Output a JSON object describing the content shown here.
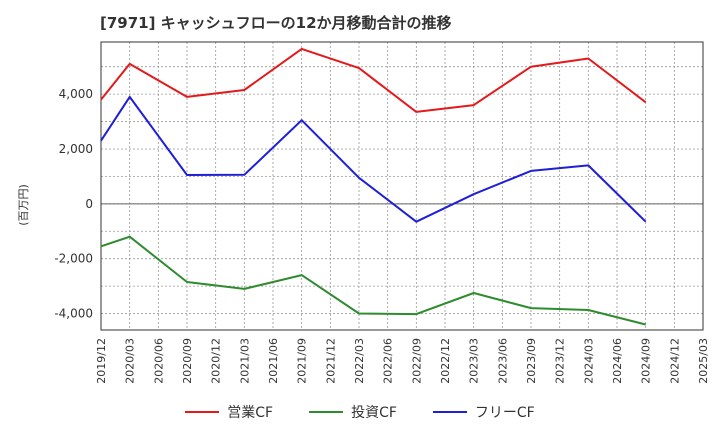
{
  "chart_data": {
    "type": "line",
    "title": "[7971]  キャッシュフローの12か月移動合計の推移",
    "ylabel": "(百万円)",
    "xlabel": "",
    "ylim": [
      -4600,
      5900
    ],
    "yticks": [
      -4000,
      -2000,
      0,
      2000,
      4000
    ],
    "ytick_labels": [
      "-4,000",
      "-2,000",
      "0",
      "2,000",
      "4,000"
    ],
    "categories": [
      "2019/12",
      "2020/03",
      "2020/06",
      "2020/09",
      "2020/12",
      "2021/03",
      "2021/06",
      "2021/09",
      "2021/12",
      "2022/03",
      "2022/06",
      "2022/09",
      "2022/12",
      "2023/03",
      "2023/06",
      "2023/09",
      "2023/12",
      "2024/03",
      "2024/06",
      "2024/09",
      "2024/12",
      "2025/03"
    ],
    "series": [
      {
        "name": "営業CF",
        "color": "#e31a1c",
        "values": [
          3800,
          5100,
          null,
          3900,
          null,
          4150,
          null,
          5650,
          null,
          4950,
          null,
          3350,
          null,
          3600,
          null,
          5000,
          null,
          5300,
          null,
          3700,
          null,
          null
        ]
      },
      {
        "name": "投資CF",
        "color": "#2e8b2e",
        "values": [
          -1550,
          -1200,
          null,
          -2850,
          null,
          -3100,
          null,
          -2600,
          null,
          -4000,
          null,
          -4020,
          null,
          -3250,
          null,
          -3800,
          null,
          -3870,
          null,
          -4400,
          null,
          null
        ]
      },
      {
        "name": "フリーCF",
        "color": "#1f1fd6",
        "values": [
          2300,
          3900,
          null,
          1050,
          null,
          1060,
          null,
          3050,
          null,
          950,
          null,
          -650,
          null,
          350,
          null,
          1200,
          null,
          1400,
          null,
          -650,
          null,
          null
        ]
      }
    ],
    "grid": true,
    "legend_position": "bottom"
  }
}
